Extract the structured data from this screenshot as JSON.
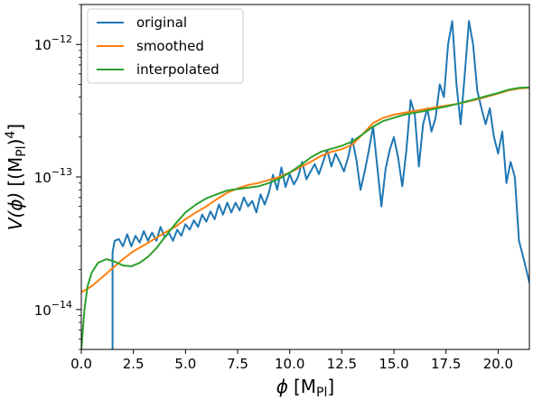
{
  "chart_data": {
    "type": "line",
    "xlabel_main": "ϕ",
    "xlabel_unit": "[M",
    "xlabel_sub": "Pl",
    "xlabel_close": "]",
    "ylabel_main": "V(ϕ)",
    "ylabel_unit": "[(M",
    "ylabel_sub": "Pl",
    "ylabel_close": ")",
    "ylabel_sup": "4",
    "ylabel_end": "]",
    "xlim": [
      0,
      21.5
    ],
    "ylim": [
      5e-15,
      2e-12
    ],
    "yscale": "log",
    "grid": false,
    "legend_position": "top-left",
    "x_ticks": [
      0.0,
      2.5,
      5.0,
      7.5,
      10.0,
      12.5,
      15.0,
      17.5,
      20.0
    ],
    "x_tick_labels": [
      "0.0",
      "2.5",
      "5.0",
      "7.5",
      "10.0",
      "12.5",
      "15.0",
      "17.5",
      "20.0"
    ],
    "y_ticks": [
      {
        "value": 1e-14,
        "base": "10",
        "exp": "−14"
      },
      {
        "value": 1e-13,
        "base": "10",
        "exp": "−13"
      },
      {
        "value": 1e-12,
        "base": "10",
        "exp": "−12"
      }
    ],
    "series": [
      {
        "name": "original",
        "color": "#1f77b4",
        "points": [
          [
            1.5,
            4e-15
          ],
          [
            1.5,
            2.7e-14
          ],
          [
            1.6,
            3.3e-14
          ],
          [
            1.8,
            3.4e-14
          ],
          [
            2.0,
            3e-14
          ],
          [
            2.2,
            3.7e-14
          ],
          [
            2.4,
            3e-14
          ],
          [
            2.6,
            3.6e-14
          ],
          [
            2.8,
            3.2e-14
          ],
          [
            3.0,
            3.9e-14
          ],
          [
            3.2,
            3.3e-14
          ],
          [
            3.4,
            3.8e-14
          ],
          [
            3.6,
            3.3e-14
          ],
          [
            3.8,
            4.2e-14
          ],
          [
            4.0,
            3.5e-14
          ],
          [
            4.2,
            3.8e-14
          ],
          [
            4.4,
            3.3e-14
          ],
          [
            4.6,
            4e-14
          ],
          [
            4.8,
            3.6e-14
          ],
          [
            5.0,
            4.4e-14
          ],
          [
            5.2,
            4e-14
          ],
          [
            5.4,
            4.7e-14
          ],
          [
            5.6,
            4.2e-14
          ],
          [
            5.8,
            5.2e-14
          ],
          [
            6.0,
            4.6e-14
          ],
          [
            6.2,
            5.5e-14
          ],
          [
            6.4,
            4.8e-14
          ],
          [
            6.6,
            6.2e-14
          ],
          [
            6.8,
            5.2e-14
          ],
          [
            7.0,
            6.4e-14
          ],
          [
            7.2,
            5.4e-14
          ],
          [
            7.4,
            6.4e-14
          ],
          [
            7.6,
            5.6e-14
          ],
          [
            7.8,
            7e-14
          ],
          [
            8.0,
            6e-14
          ],
          [
            8.2,
            6.6e-14
          ],
          [
            8.4,
            5.4e-14
          ],
          [
            8.6,
            7.4e-14
          ],
          [
            8.8,
            6.2e-14
          ],
          [
            9.0,
            7.6e-14
          ],
          [
            9.2,
            1.04e-13
          ],
          [
            9.4,
            8e-14
          ],
          [
            9.6,
            1.18e-13
          ],
          [
            9.8,
            8.4e-14
          ],
          [
            10.0,
            1.05e-13
          ],
          [
            10.2,
            8.8e-14
          ],
          [
            10.4,
            1e-13
          ],
          [
            10.6,
            1.3e-13
          ],
          [
            10.8,
            9.6e-14
          ],
          [
            11.0,
            1.1e-13
          ],
          [
            11.2,
            1.25e-13
          ],
          [
            11.4,
            1.05e-13
          ],
          [
            11.6,
            1.3e-13
          ],
          [
            11.8,
            1.6e-13
          ],
          [
            12.0,
            1.2e-13
          ],
          [
            12.2,
            1.5e-13
          ],
          [
            12.4,
            1.3e-13
          ],
          [
            12.6,
            1.1e-13
          ],
          [
            12.8,
            1.4e-13
          ],
          [
            13.0,
            1.95e-13
          ],
          [
            13.2,
            1.35e-13
          ],
          [
            13.4,
            8e-14
          ],
          [
            13.6,
            1.1e-13
          ],
          [
            13.8,
            1.6e-13
          ],
          [
            14.0,
            2.4e-13
          ],
          [
            14.2,
            1.2e-13
          ],
          [
            14.4,
            6e-14
          ],
          [
            14.6,
            1.15e-13
          ],
          [
            14.8,
            1.6e-13
          ],
          [
            15.0,
            2e-13
          ],
          [
            15.2,
            1.4e-13
          ],
          [
            15.4,
            8.5e-14
          ],
          [
            15.6,
            1.6e-13
          ],
          [
            15.8,
            3.8e-13
          ],
          [
            16.0,
            3e-13
          ],
          [
            16.2,
            1.2e-13
          ],
          [
            16.4,
            2.5e-13
          ],
          [
            16.6,
            3.3e-13
          ],
          [
            16.8,
            2.2e-13
          ],
          [
            17.0,
            2.8e-13
          ],
          [
            17.2,
            5e-13
          ],
          [
            17.4,
            4e-13
          ],
          [
            17.6,
            1e-12
          ],
          [
            17.8,
            1.5e-12
          ],
          [
            18.0,
            5e-13
          ],
          [
            18.2,
            2.5e-13
          ],
          [
            18.4,
            6e-13
          ],
          [
            18.6,
            1.5e-12
          ],
          [
            18.8,
            1e-12
          ],
          [
            19.0,
            4.5e-13
          ],
          [
            19.2,
            3.3e-13
          ],
          [
            19.4,
            2.5e-13
          ],
          [
            19.6,
            3.3e-13
          ],
          [
            19.8,
            2e-13
          ],
          [
            20.0,
            1.5e-13
          ],
          [
            20.2,
            2.2e-13
          ],
          [
            20.4,
            9e-14
          ],
          [
            20.6,
            1.3e-13
          ],
          [
            20.8,
            1e-13
          ],
          [
            21.0,
            3.3e-14
          ],
          [
            21.2,
            2.5e-14
          ],
          [
            21.5,
            1.6e-14
          ]
        ]
      },
      {
        "name": "smoothed",
        "color": "#ff7f0e",
        "points": [
          [
            0.0,
            1.35e-14
          ],
          [
            0.5,
            1.5e-14
          ],
          [
            1.0,
            1.75e-14
          ],
          [
            1.5,
            2.05e-14
          ],
          [
            2.0,
            2.4e-14
          ],
          [
            2.5,
            2.75e-14
          ],
          [
            3.0,
            3.05e-14
          ],
          [
            3.5,
            3.4e-14
          ],
          [
            4.0,
            3.8e-14
          ],
          [
            4.5,
            4.2e-14
          ],
          [
            5.0,
            4.8e-14
          ],
          [
            5.5,
            5.4e-14
          ],
          [
            6.0,
            6e-14
          ],
          [
            6.5,
            6.8e-14
          ],
          [
            7.0,
            7.6e-14
          ],
          [
            7.5,
            8.2e-14
          ],
          [
            8.0,
            8.7e-14
          ],
          [
            8.5,
            9e-14
          ],
          [
            9.0,
            9.5e-14
          ],
          [
            9.5,
            1e-13
          ],
          [
            10.0,
            1.08e-13
          ],
          [
            10.5,
            1.18e-13
          ],
          [
            11.0,
            1.3e-13
          ],
          [
            11.5,
            1.44e-13
          ],
          [
            12.0,
            1.55e-13
          ],
          [
            12.5,
            1.62e-13
          ],
          [
            13.0,
            1.75e-13
          ],
          [
            13.5,
            2.1e-13
          ],
          [
            14.0,
            2.55e-13
          ],
          [
            14.5,
            2.8e-13
          ],
          [
            15.0,
            2.95e-13
          ],
          [
            15.5,
            3.05e-13
          ],
          [
            16.0,
            3.15e-13
          ],
          [
            16.5,
            3.25e-13
          ],
          [
            17.0,
            3.35e-13
          ],
          [
            17.5,
            3.45e-13
          ],
          [
            18.0,
            3.55e-13
          ],
          [
            18.5,
            3.7e-13
          ],
          [
            19.0,
            3.85e-13
          ],
          [
            19.5,
            4.05e-13
          ],
          [
            20.0,
            4.25e-13
          ],
          [
            20.5,
            4.5e-13
          ],
          [
            21.0,
            4.65e-13
          ],
          [
            21.5,
            4.7e-13
          ]
        ]
      },
      {
        "name": "interpolated",
        "color": "#2ca02c",
        "points": [
          [
            0.0,
            5e-15
          ],
          [
            0.15,
            1e-14
          ],
          [
            0.3,
            1.5e-14
          ],
          [
            0.5,
            1.9e-14
          ],
          [
            0.8,
            2.25e-14
          ],
          [
            1.2,
            2.4e-14
          ],
          [
            1.6,
            2.3e-14
          ],
          [
            2.0,
            2.15e-14
          ],
          [
            2.4,
            2.12e-14
          ],
          [
            2.8,
            2.25e-14
          ],
          [
            3.2,
            2.5e-14
          ],
          [
            3.6,
            2.9e-14
          ],
          [
            4.0,
            3.5e-14
          ],
          [
            4.5,
            4.4e-14
          ],
          [
            5.0,
            5.4e-14
          ],
          [
            5.5,
            6.2e-14
          ],
          [
            6.0,
            6.9e-14
          ],
          [
            6.5,
            7.4e-14
          ],
          [
            7.0,
            7.9e-14
          ],
          [
            7.5,
            8.1e-14
          ],
          [
            8.0,
            8.3e-14
          ],
          [
            8.5,
            8.5e-14
          ],
          [
            9.0,
            9e-14
          ],
          [
            9.5,
            9.7e-14
          ],
          [
            10.0,
            1.08e-13
          ],
          [
            10.5,
            1.22e-13
          ],
          [
            11.0,
            1.4e-13
          ],
          [
            11.5,
            1.55e-13
          ],
          [
            12.0,
            1.63e-13
          ],
          [
            12.5,
            1.72e-13
          ],
          [
            13.0,
            1.85e-13
          ],
          [
            13.5,
            2.1e-13
          ],
          [
            14.0,
            2.4e-13
          ],
          [
            14.5,
            2.65e-13
          ],
          [
            15.0,
            2.8e-13
          ],
          [
            15.5,
            2.95e-13
          ],
          [
            16.0,
            3.05e-13
          ],
          [
            16.5,
            3.15e-13
          ],
          [
            17.0,
            3.28e-13
          ],
          [
            17.5,
            3.4e-13
          ],
          [
            18.0,
            3.55e-13
          ],
          [
            18.5,
            3.72e-13
          ],
          [
            19.0,
            3.9e-13
          ],
          [
            19.5,
            4.1e-13
          ],
          [
            20.0,
            4.3e-13
          ],
          [
            20.5,
            4.55e-13
          ],
          [
            21.0,
            4.7e-13
          ],
          [
            21.5,
            4.75e-13
          ]
        ]
      }
    ]
  }
}
